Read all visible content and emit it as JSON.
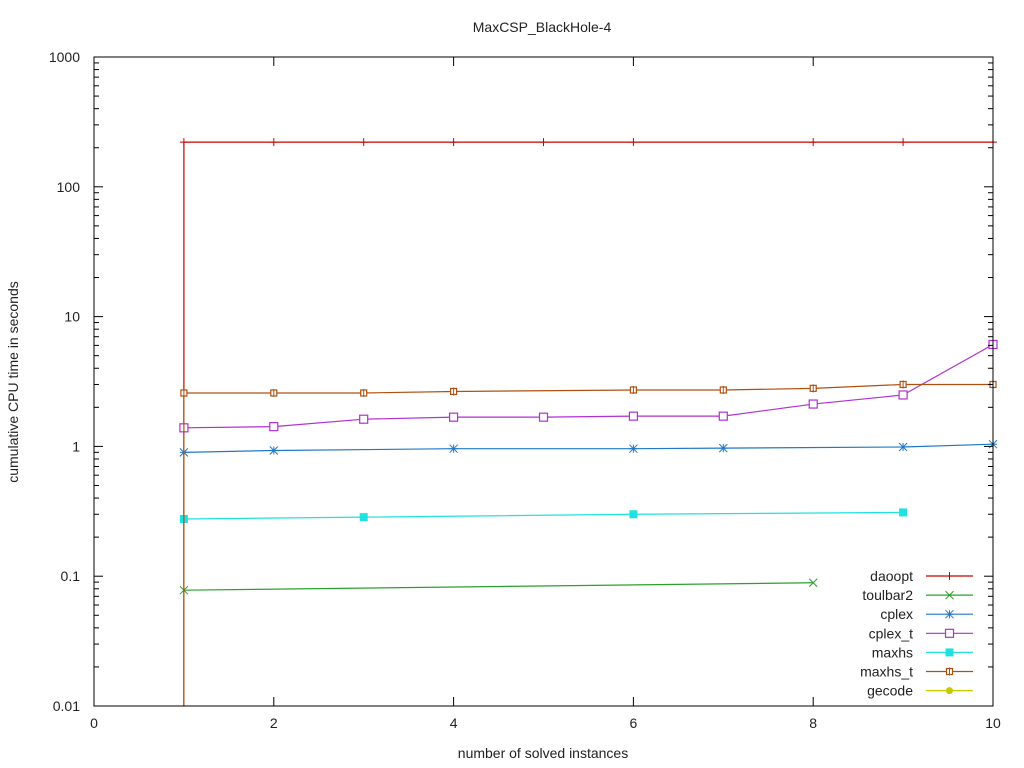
{
  "chart_data": {
    "type": "line",
    "title": "MaxCSP_BlackHole-4",
    "xlabel": "number of solved instances",
    "ylabel": "cumulative CPU time in seconds",
    "xlim": [
      0,
      10
    ],
    "ylim": [
      0.01,
      1000
    ],
    "yscale": "log",
    "grid": false,
    "legend_position": "bottom-right inside",
    "x_ticks": [
      0,
      2,
      4,
      6,
      8,
      10
    ],
    "x_tick_labels": [
      "0",
      "2",
      "4",
      "6",
      "8",
      "10"
    ],
    "y_ticks": [
      0.01,
      0.1,
      1,
      10,
      100,
      1000
    ],
    "y_tick_labels": [
      "0.01",
      "0.1",
      "1",
      "10",
      "100",
      "1000"
    ],
    "series": [
      {
        "name": "daoopt",
        "color": "#cc0000",
        "marker": "plus",
        "x": [
          1,
          2,
          3,
          4,
          5,
          6,
          8,
          9,
          10
        ],
        "values": [
          221,
          221,
          221,
          221,
          221,
          221,
          221,
          221,
          221
        ],
        "drop_line_from_x1": true
      },
      {
        "name": "toulbar2",
        "color": "#2ca02c",
        "marker": "x",
        "x": [
          1,
          8
        ],
        "values": [
          0.078,
          0.089
        ]
      },
      {
        "name": "cplex",
        "color": "#1f78c8",
        "marker": "star",
        "x": [
          1,
          2,
          4,
          6,
          7,
          9,
          10
        ],
        "values": [
          0.9,
          0.93,
          0.96,
          0.96,
          0.97,
          0.99,
          1.04
        ]
      },
      {
        "name": "cplex_t",
        "color": "#b030d0",
        "marker": "open-square",
        "x": [
          1,
          2,
          3,
          4,
          5,
          6,
          7,
          8,
          9,
          10
        ],
        "values": [
          1.39,
          1.42,
          1.62,
          1.68,
          1.68,
          1.71,
          1.71,
          2.12,
          2.49,
          6.1
        ]
      },
      {
        "name": "maxhs",
        "color": "#20e0e0",
        "marker": "filled-square",
        "x": [
          1,
          3,
          6,
          9
        ],
        "values": [
          0.276,
          0.285,
          0.3,
          0.31
        ]
      },
      {
        "name": "maxhs_t",
        "color": "#b05010",
        "marker": "open-circle-dot",
        "x": [
          1,
          2,
          3,
          4,
          6,
          7,
          8,
          9,
          10
        ],
        "values": [
          2.58,
          2.58,
          2.58,
          2.65,
          2.72,
          2.72,
          2.8,
          3.0,
          3.0
        ],
        "drop_line_from_x1": true
      },
      {
        "name": "gecode",
        "color": "#c8c800",
        "marker": "filled-circle",
        "x": [],
        "values": []
      }
    ]
  }
}
